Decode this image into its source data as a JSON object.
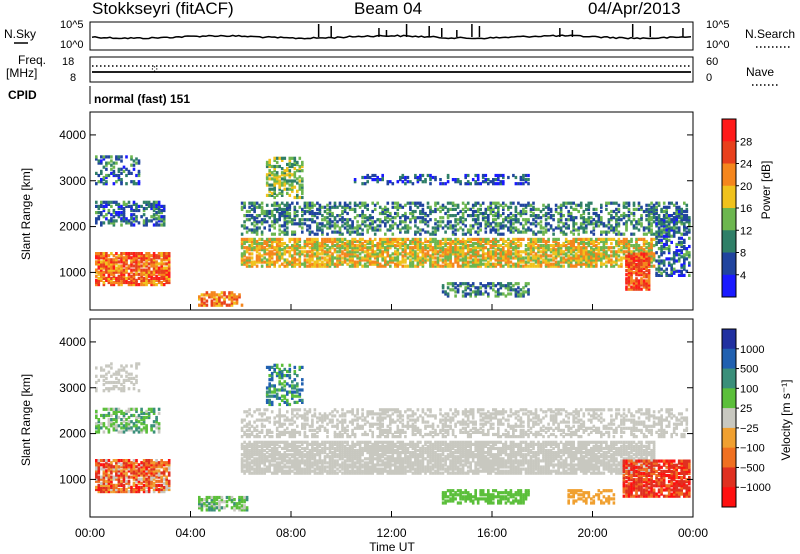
{
  "header": {
    "station": "Stokkseyri (fitACF)",
    "beam": "Beam 04",
    "date": "04/Apr/2013"
  },
  "top_panels": {
    "nsky_label": "N.Sky",
    "nsky_ticks": [
      "10^5",
      "10^0"
    ],
    "nsearch_label": "N.Search",
    "nsearch_ticks": [
      "10^5",
      "10^0"
    ],
    "freq_label_1": "Freq.",
    "freq_label_2": "[MHz]",
    "freq_ticks": [
      "18",
      "8"
    ],
    "nave_label": "Nave",
    "nave_ticks": [
      "60",
      "0"
    ],
    "cpid_label": "CPID",
    "cpid_value": "normal (fast) 151"
  },
  "chart_data": [
    {
      "type": "heatmap",
      "name": "power",
      "ylabel": "Slant Range [km]",
      "ylim": [
        180,
        4500
      ],
      "yticks": [
        "1000",
        "2000",
        "3000",
        "4000"
      ],
      "colorbar_label": "Power [dB]",
      "colorbar_ticks": [
        "4",
        "8",
        "12",
        "16",
        "20",
        "24",
        "28"
      ],
      "colors": [
        "#1a1aff",
        "#20449e",
        "#2f7f67",
        "#6cb64f",
        "#f0c21c",
        "#f5861c",
        "#e8401c",
        "#ff1a1a"
      ],
      "grid": false
    },
    {
      "type": "heatmap",
      "name": "velocity",
      "ylabel": "Slant Range [km]",
      "ylim": [
        180,
        4500
      ],
      "yticks": [
        "1000",
        "2000",
        "3000",
        "4000"
      ],
      "xlabel": "Time UT",
      "xticks": [
        "00:00",
        "04:00",
        "08:00",
        "12:00",
        "16:00",
        "20:00",
        "00:00"
      ],
      "colorbar_label": "Velocity [m s⁻¹]",
      "colorbar_ticks": [
        "1000",
        "500",
        "100",
        "25",
        "−25",
        "−100",
        "−500",
        "−1000"
      ],
      "colors": [
        "#2030a0",
        "#2060b0",
        "#3a8f7a",
        "#5bbf3a",
        "#c8c8c0",
        "#f0a030",
        "#f07020",
        "#e03020",
        "#ff1010"
      ],
      "grid": false
    }
  ]
}
